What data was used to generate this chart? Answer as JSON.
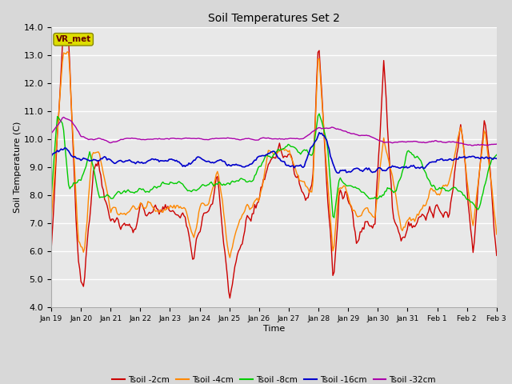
{
  "title": "Soil Temperatures Set 2",
  "xlabel": "Time",
  "ylabel": "Soil Temperature (C)",
  "ylim": [
    4.0,
    14.0
  ],
  "yticks": [
    4.0,
    5.0,
    6.0,
    7.0,
    8.0,
    9.0,
    10.0,
    11.0,
    12.0,
    13.0,
    14.0
  ],
  "xtick_labels": [
    "Jan 19",
    "Jan 20",
    "Jan 21",
    "Jan 22",
    "Jan 23",
    "Jan 24",
    "Jan 25",
    "Jan 26",
    "Jan 27",
    "Jan 28",
    "Jan 29",
    "Jan 30",
    "Jan 31",
    "Feb 1",
    "Feb 2",
    "Feb 3"
  ],
  "series_colors": [
    "#cc0000",
    "#ff8800",
    "#00cc00",
    "#0000cc",
    "#aa00aa"
  ],
  "series_labels": [
    "Tsoil -2cm",
    "Tsoil -4cm",
    "Tsoil -8cm",
    "Tsoil -16cm",
    "Tsoil -32cm"
  ],
  "plot_bg_color": "#e8e8e8",
  "fig_bg_color": "#d8d8d8",
  "grid_color": "#ffffff",
  "label_box_color": "#dddd00",
  "label_box_text": "VR_met",
  "n_points": 360,
  "days": 15
}
